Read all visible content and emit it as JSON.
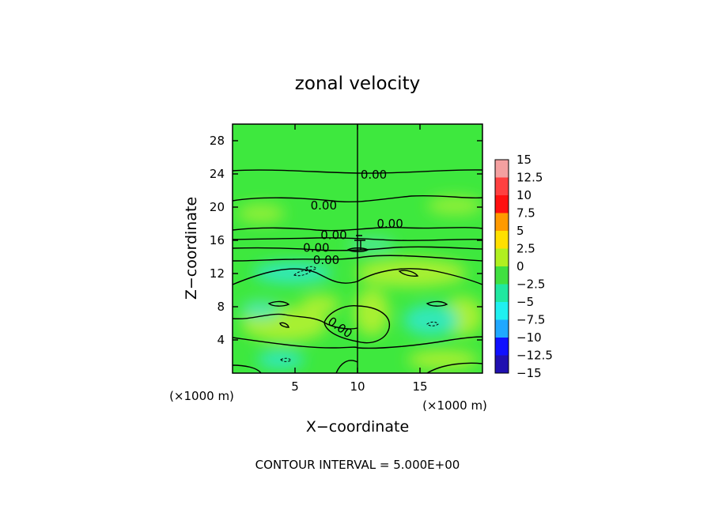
{
  "chart_data": {
    "type": "heatmap",
    "title": "zonal velocity",
    "xlabel": "X−coordinate",
    "ylabel": "Z−coordinate",
    "x_unit_left": "(×1000 m)",
    "x_unit_right": "(×1000 m)",
    "xlim": [
      0,
      20
    ],
    "ylim": [
      0,
      30
    ],
    "x_ticks": [
      {
        "value": 5,
        "label": "5"
      },
      {
        "value": 10,
        "label": "10"
      },
      {
        "value": 15,
        "label": "15"
      }
    ],
    "y_ticks": [
      {
        "value": 4,
        "label": "4"
      },
      {
        "value": 8,
        "label": "8"
      },
      {
        "value": 12,
        "label": "12"
      },
      {
        "value": 16,
        "label": "16"
      },
      {
        "value": 20,
        "label": "20"
      },
      {
        "value": 24,
        "label": "24"
      },
      {
        "value": 28,
        "label": "28"
      }
    ],
    "colorbar": {
      "levels": [
        {
          "value": 15,
          "label": "15",
          "color": "#f4a0a0"
        },
        {
          "value": 12.5,
          "label": "12.5",
          "color": "#ff4040"
        },
        {
          "value": 10,
          "label": "10",
          "color": "#ff1010"
        },
        {
          "value": 7.5,
          "label": "7.5",
          "color": "#ff9a00"
        },
        {
          "value": 5,
          "label": "5",
          "color": "#ffe000"
        },
        {
          "value": 2.5,
          "label": "2.5",
          "color": "#b0f020"
        },
        {
          "value": 0,
          "label": "0",
          "color": "#40e040"
        },
        {
          "value": -2.5,
          "label": "−2.5",
          "color": "#20e8a0"
        },
        {
          "value": -5,
          "label": "−5",
          "color": "#20f0f0"
        },
        {
          "value": -7.5,
          "label": "−7.5",
          "color": "#20a8ff"
        },
        {
          "value": -10,
          "label": "−10",
          "color": "#1010ff"
        },
        {
          "value": -12.5,
          "label": "−12.5",
          "color": "#2010b0"
        },
        {
          "value": -15,
          "label": "−15",
          "color": "#7010b0"
        }
      ]
    },
    "contour_labels": [
      {
        "x": 11.3,
        "z": 23.9,
        "text": "0.00"
      },
      {
        "x": 7.3,
        "z": 20.2,
        "text": "0.00"
      },
      {
        "x": 12.6,
        "z": 18.0,
        "text": "0.00"
      },
      {
        "x": 8.1,
        "z": 16.6,
        "text": "0.00"
      },
      {
        "x": 6.7,
        "z": 15.1,
        "text": "0.00"
      },
      {
        "x": 7.5,
        "z": 13.6,
        "text": "0.00"
      },
      {
        "x": 8.6,
        "z": 5.5,
        "text": "0.00"
      }
    ],
    "footer": "CONTOUR INTERVAL = 5.000E+00",
    "colors": {
      "field_base": "#3ee83e",
      "positive_patch": "#a8f030",
      "negative_patch": "#30e8b8"
    }
  }
}
